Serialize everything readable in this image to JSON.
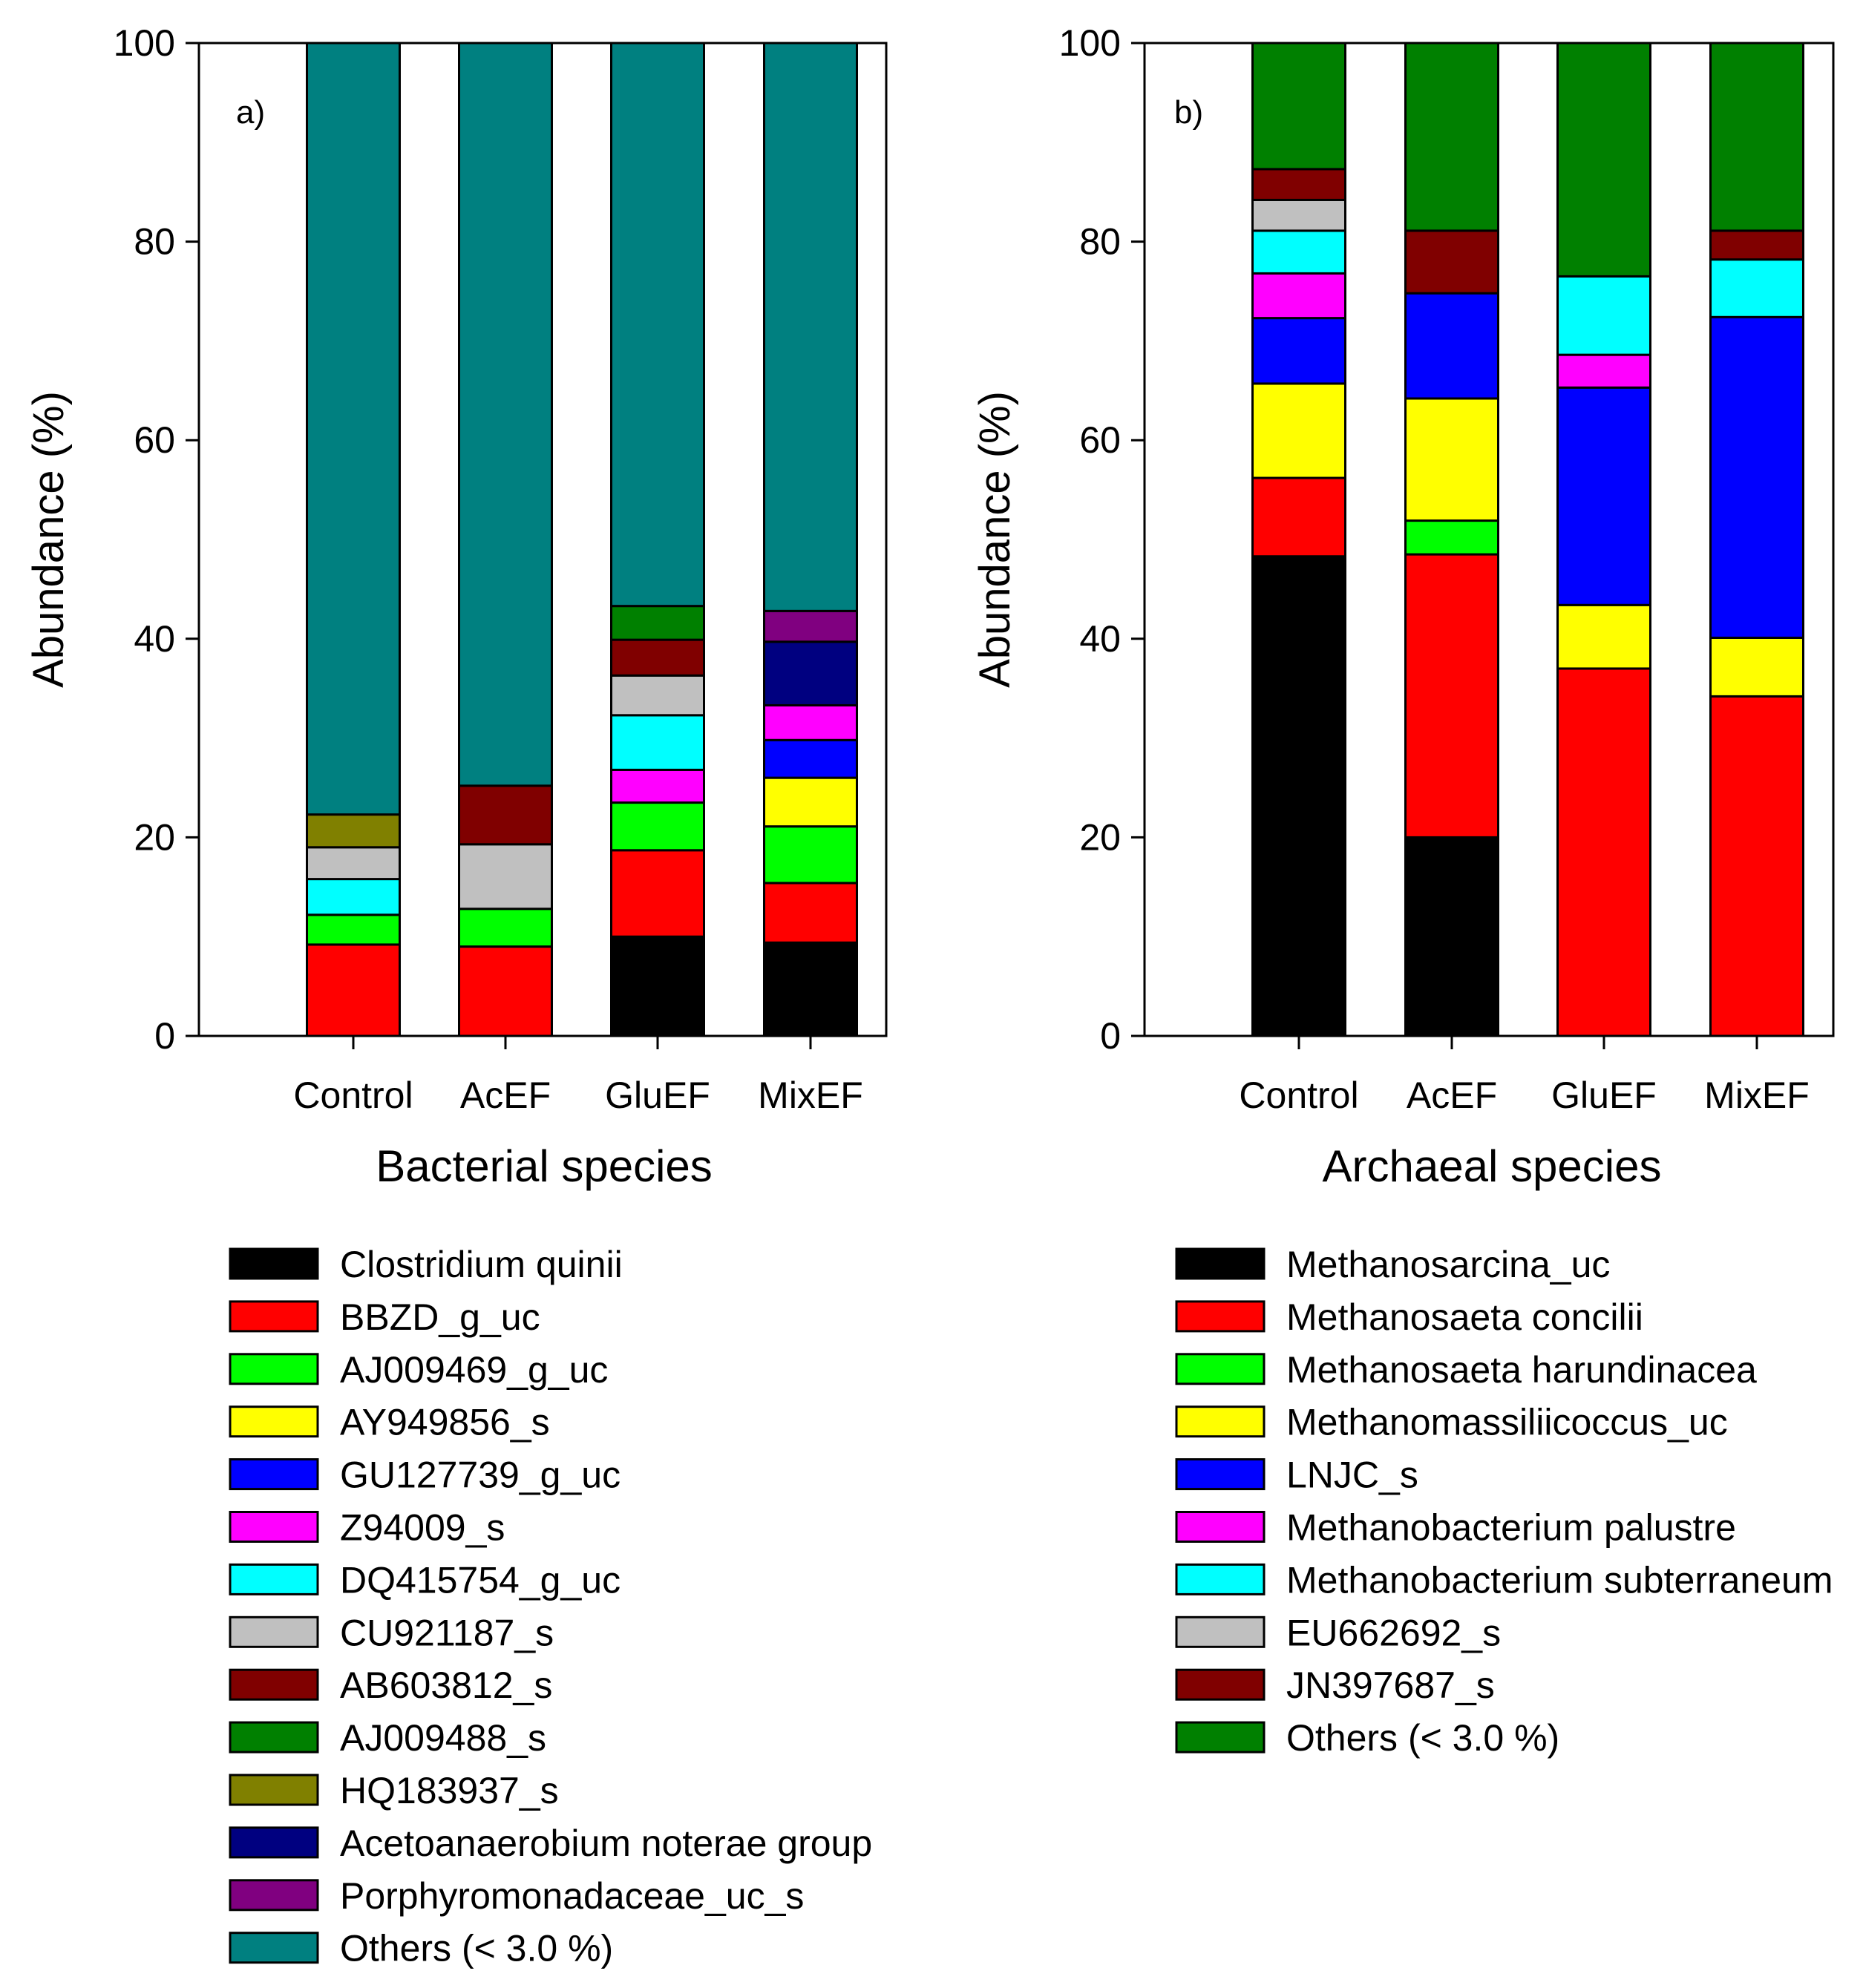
{
  "chart_data": [
    {
      "type": "bar",
      "stacked": true,
      "panel_label": "a)",
      "xlabel": "Bacterial species",
      "ylabel": "Abundance (%)",
      "ylim": [
        0,
        100
      ],
      "yticks": [
        0,
        20,
        40,
        60,
        80,
        100
      ],
      "categories": [
        "Control",
        "AcEF",
        "GluEF",
        "MixEF"
      ],
      "series": [
        {
          "name": "Clostridium quinii",
          "color": "#000000",
          "values": [
            0,
            0,
            10.0,
            9.4
          ]
        },
        {
          "name": "BBZD_g_uc",
          "color": "#ff0000",
          "values": [
            9.2,
            9.0,
            8.7,
            6.0
          ]
        },
        {
          "name": "AJ009469_g_uc",
          "color": "#00ff00",
          "values": [
            3.0,
            3.8,
            4.8,
            5.7
          ]
        },
        {
          "name": "AY949856_s",
          "color": "#ffff00",
          "values": [
            0,
            0,
            0,
            4.9
          ]
        },
        {
          "name": "GU127739_g_uc",
          "color": "#0000ff",
          "values": [
            0,
            0,
            0,
            3.8
          ]
        },
        {
          "name": "Z94009_s",
          "color": "#ff00ff",
          "values": [
            0,
            0,
            3.3,
            3.5
          ]
        },
        {
          "name": "DQ415754_g_uc",
          "color": "#00ffff",
          "values": [
            3.6,
            0,
            5.5,
            0
          ]
        },
        {
          "name": "CU921187_s",
          "color": "#c0c0c0",
          "values": [
            3.2,
            6.5,
            4.0,
            0
          ]
        },
        {
          "name": "AB603812_s",
          "color": "#800000",
          "values": [
            0,
            5.9,
            3.6,
            0
          ]
        },
        {
          "name": "AJ009488_s",
          "color": "#008000",
          "values": [
            0,
            0,
            3.4,
            0
          ]
        },
        {
          "name": "HQ183937_s",
          "color": "#808000",
          "values": [
            3.3,
            0,
            0,
            0
          ]
        },
        {
          "name": "Acetoanaerobium noterae group",
          "color": "#000080",
          "values": [
            0,
            0,
            0,
            6.4
          ]
        },
        {
          "name": "Porphyromonadaceae_uc_s",
          "color": "#800080",
          "values": [
            0,
            0,
            0,
            3.1
          ]
        },
        {
          "name": "Others (< 3.0 %)",
          "color": "#008080",
          "values": [
            77.7,
            74.8,
            56.7,
            57.2
          ]
        }
      ]
    },
    {
      "type": "bar",
      "stacked": true,
      "panel_label": "b)",
      "xlabel": "Archaeal species",
      "ylabel": "Abundance (%)",
      "ylim": [
        0,
        100
      ],
      "yticks": [
        0,
        20,
        40,
        60,
        80,
        100
      ],
      "categories": [
        "Control",
        "AcEF",
        "GluEF",
        "MixEF"
      ],
      "series": [
        {
          "name": "Methanosarcina_uc",
          "color": "#000000",
          "values": [
            48.3,
            20.0,
            0,
            0
          ]
        },
        {
          "name": "Methanosaeta concilii",
          "color": "#ff0000",
          "values": [
            7.9,
            28.5,
            37.0,
            34.2
          ]
        },
        {
          "name": "Methanosaeta harundinacea",
          "color": "#00ff00",
          "values": [
            0,
            3.4,
            0,
            0
          ]
        },
        {
          "name": "Methanomassiliicoccus_uc",
          "color": "#ffff00",
          "values": [
            9.5,
            12.3,
            6.4,
            5.9
          ]
        },
        {
          "name": "LNJC_s",
          "color": "#0000ff",
          "values": [
            6.6,
            10.6,
            21.9,
            32.3
          ]
        },
        {
          "name": "Methanobacterium palustre",
          "color": "#ff00ff",
          "values": [
            4.5,
            0,
            3.3,
            0
          ]
        },
        {
          "name": "Methanobacterium subterraneum",
          "color": "#00ffff",
          "values": [
            4.3,
            0,
            7.9,
            5.8
          ]
        },
        {
          "name": "EU662692_s",
          "color": "#c0c0c0",
          "values": [
            3.1,
            0,
            0,
            0
          ]
        },
        {
          "name": "JN397687_s",
          "color": "#800000",
          "values": [
            3.1,
            6.3,
            0,
            2.9
          ]
        },
        {
          "name": "Others (< 3.0 %)",
          "color": "#008000",
          "values": [
            12.7,
            18.9,
            23.5,
            18.9
          ]
        }
      ]
    }
  ]
}
